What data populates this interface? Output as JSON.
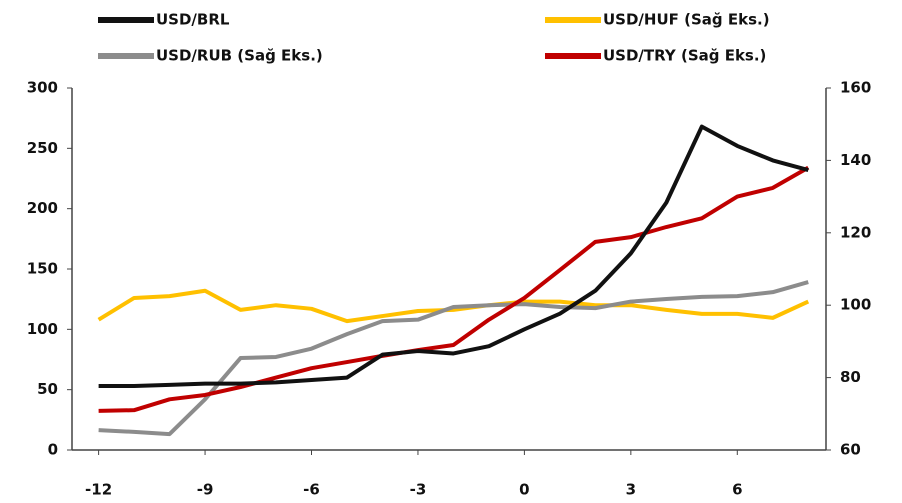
{
  "chart_data": {
    "type": "line",
    "x": [
      -12,
      -11,
      -10,
      -9,
      -8,
      -7,
      -6,
      -5,
      -4,
      -3,
      -2,
      -1,
      0,
      1,
      2,
      3,
      4,
      5,
      6,
      7,
      8
    ],
    "series": [
      {
        "name": "USD/HUF (Sağ Eks.)",
        "color": "#ffc000",
        "axis": "y2",
        "values": [
          96,
          102,
          102.5,
          104,
          98.7,
          100,
          99,
          95.6,
          97,
          98.4,
          98.7,
          100,
          101,
          101,
          100,
          100,
          98.7,
          97.6,
          97.6,
          96.5,
          101
        ]
      },
      {
        "name": "USD/RUB (Sağ Eks.)",
        "color": "#8c8c8c",
        "axis": "y2",
        "values": [
          65.5,
          65,
          64.4,
          74,
          85.4,
          85.7,
          88,
          92,
          95.6,
          96,
          99.5,
          100,
          100.3,
          99.5,
          99.2,
          101,
          101.7,
          102.3,
          102.5,
          103.6,
          106.4
        ]
      },
      {
        "name": "USD/TRY (Sağ Eks.)",
        "color": "#c00000",
        "axis": "y2",
        "values": [
          70.8,
          71,
          74,
          75.2,
          77.4,
          80,
          82.6,
          84.3,
          86,
          87.6,
          89,
          96,
          102,
          109.7,
          117.5,
          118.8,
          121.6,
          124,
          130,
          132.4,
          138
        ]
      },
      {
        "name": "USD/BRL",
        "color": "#111111",
        "values": [
          53,
          53,
          54,
          55,
          55,
          56,
          58,
          60,
          79,
          82,
          80,
          86,
          100,
          113,
          132,
          163,
          205,
          268,
          252,
          240,
          232
        ]
      }
    ],
    "xlim": [
      -12.75,
      8.5
    ],
    "xticks": [
      -12,
      -9,
      -6,
      -3,
      0,
      3,
      6
    ],
    "ylim": [
      0,
      300
    ],
    "yticks": [
      0,
      50,
      100,
      150,
      200,
      250,
      300
    ],
    "y2lim": [
      60,
      160
    ],
    "y2ticks": [
      60,
      80,
      100,
      120,
      140,
      160
    ]
  }
}
